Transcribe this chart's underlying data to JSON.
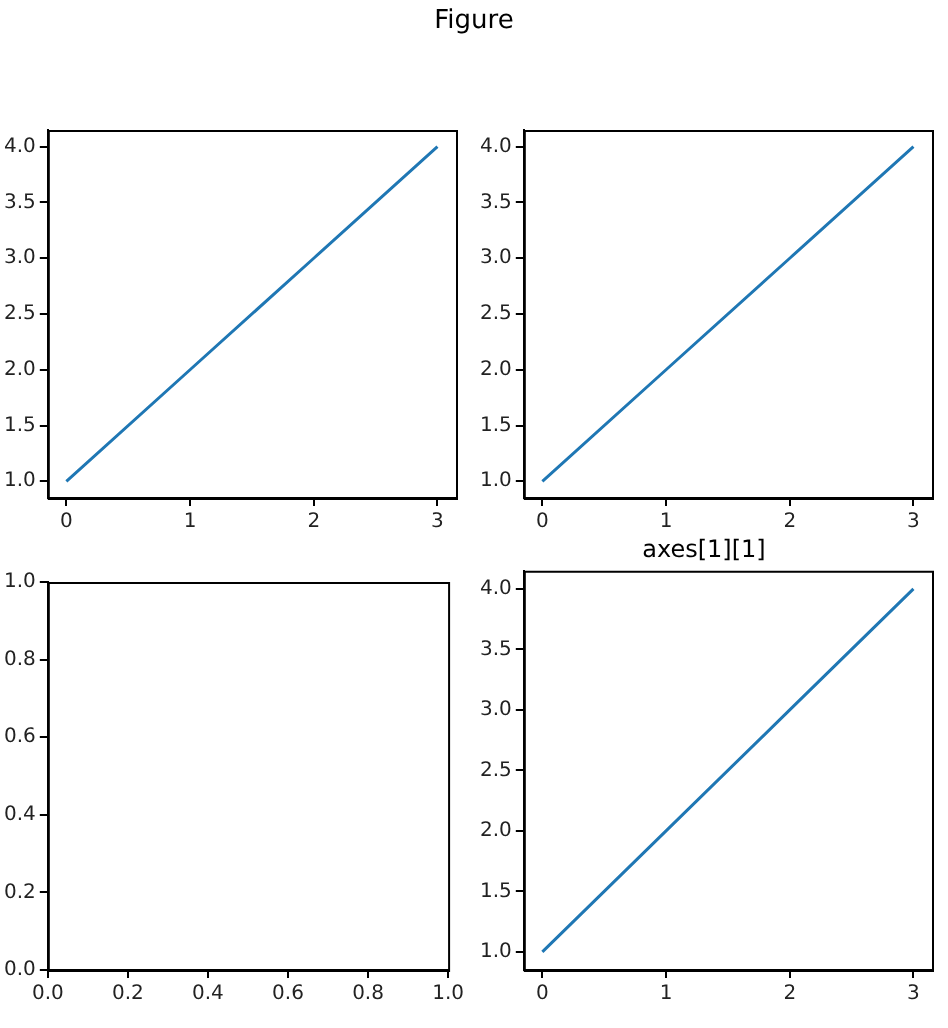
{
  "chart_data": [
    {
      "type": "line",
      "title": "Figure",
      "x": [
        0,
        1,
        2,
        3
      ],
      "series": [
        {
          "color": "#1f77b4",
          "values": [
            1,
            2,
            3,
            4
          ]
        }
      ],
      "xlim": [
        -0.15,
        3.15
      ],
      "ylim": [
        0.85,
        4.15
      ],
      "xticks": [
        0,
        1,
        2,
        3
      ],
      "yticks": [
        {
          "value": 1,
          "label": "1.0"
        },
        {
          "value": 1.5,
          "label": "1.5"
        },
        {
          "value": 2,
          "label": "2.0"
        },
        {
          "value": 2.5,
          "label": "2.5"
        },
        {
          "value": 3,
          "label": "3.0"
        },
        {
          "value": 3.5,
          "label": "3.5"
        },
        {
          "value": 4,
          "label": "4.0"
        }
      ],
      "legend": false
    },
    {
      "type": "line",
      "x": [
        0,
        1,
        2,
        3
      ],
      "series": [
        {
          "color": "#1f77b4",
          "values": [
            1,
            2,
            3,
            4
          ]
        }
      ],
      "xlim": [
        -0.15,
        3.15
      ],
      "ylim": [
        0.85,
        4.15
      ],
      "xticks": [
        0,
        1,
        2,
        3
      ],
      "yticks": [
        {
          "value": 1,
          "label": "1.0"
        },
        {
          "value": 1.5,
          "label": "1.5"
        },
        {
          "value": 2,
          "label": "2.0"
        },
        {
          "value": 2.5,
          "label": "2.5"
        },
        {
          "value": 3,
          "label": "3.0"
        },
        {
          "value": 3.5,
          "label": "3.5"
        },
        {
          "value": 4,
          "label": "4.0"
        }
      ],
      "legend": false
    },
    {
      "type": "line",
      "xlim": [
        0,
        1
      ],
      "ylim": [
        0,
        1
      ],
      "xticks": [
        {
          "value": 0,
          "label": "0.0"
        },
        {
          "value": 0.2,
          "label": "0.2"
        },
        {
          "value": 0.4,
          "label": "0.4"
        },
        {
          "value": 0.6,
          "label": "0.6"
        },
        {
          "value": 0.8,
          "label": "0.8"
        },
        {
          "value": 1,
          "label": "1.0"
        }
      ],
      "yticks": [
        {
          "value": 0,
          "label": "0.0"
        },
        {
          "value": 0.2,
          "label": "0.2"
        },
        {
          "value": 0.4,
          "label": "0.4"
        },
        {
          "value": 0.6,
          "label": "0.6"
        },
        {
          "value": 0.8,
          "label": "0.8"
        },
        {
          "value": 1,
          "label": "1.0"
        }
      ],
      "legend": false
    },
    {
      "type": "line",
      "title": "axes[1][1]",
      "x": [
        0,
        1,
        2,
        3
      ],
      "series": [
        {
          "color": "#1f77b4",
          "values": [
            1,
            2,
            3,
            4
          ]
        }
      ],
      "xlim": [
        -0.15,
        3.15
      ],
      "ylim": [
        0.85,
        4.15
      ],
      "xticks": [
        0,
        1,
        2,
        3
      ],
      "yticks": [
        {
          "value": 1,
          "label": "1.0"
        },
        {
          "value": 1.5,
          "label": "1.5"
        },
        {
          "value": 2,
          "label": "2.0"
        },
        {
          "value": 2.5,
          "label": "2.5"
        },
        {
          "value": 3,
          "label": "3.0"
        },
        {
          "value": 3.5,
          "label": "3.5"
        },
        {
          "value": 4,
          "label": "4.0"
        }
      ],
      "legend": false
    }
  ]
}
